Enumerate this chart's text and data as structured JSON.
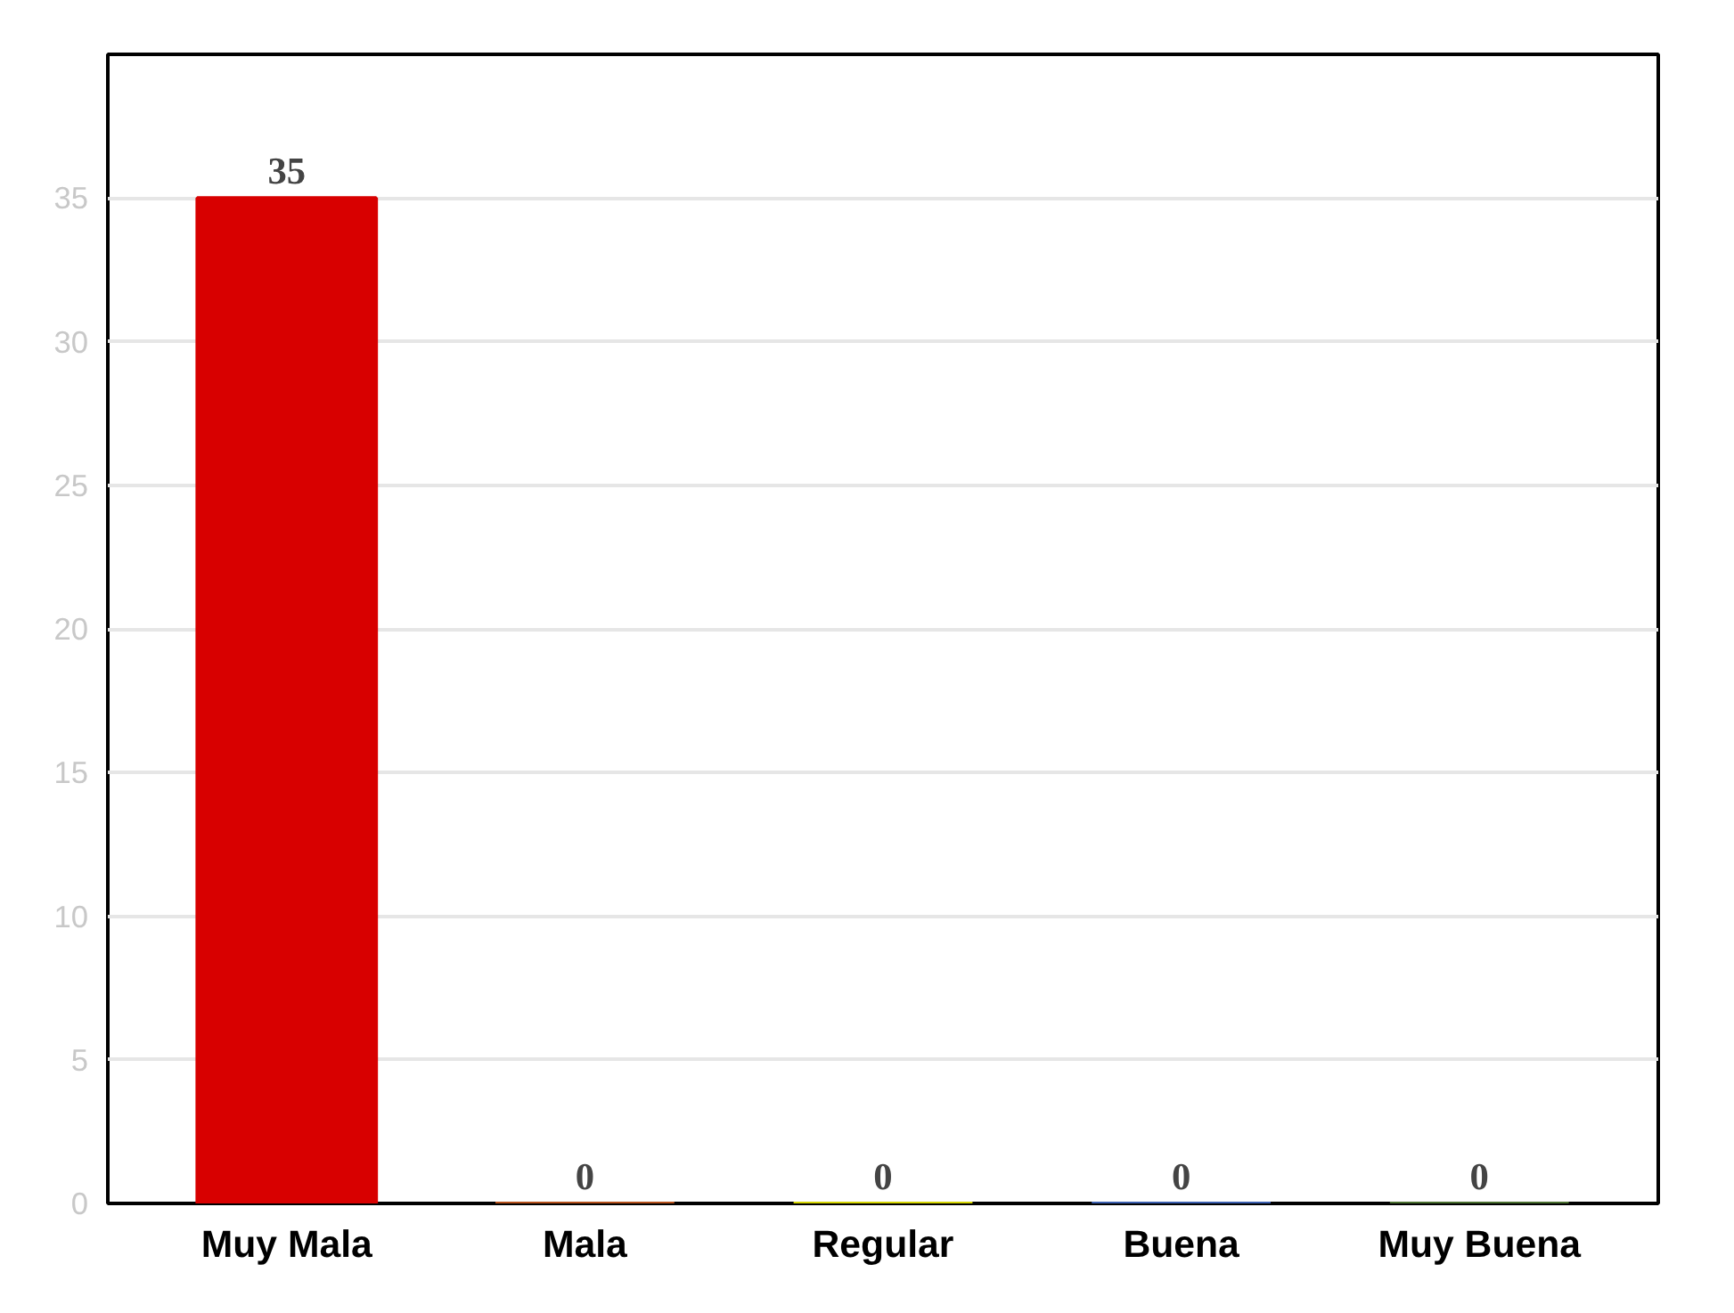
{
  "chart_data": {
    "type": "bar",
    "categories": [
      "Muy Mala",
      "Mala",
      "Regular",
      "Buena",
      "Muy Buena"
    ],
    "values": [
      35,
      0,
      0,
      0,
      0
    ],
    "colors": [
      "#d80000",
      "#b5501a",
      "#d4d400",
      "#3a5fb0",
      "#4a7030"
    ],
    "ylim": [
      0,
      40
    ],
    "yticks": [
      0,
      5,
      10,
      15,
      20,
      25,
      30,
      35
    ],
    "grid": "y",
    "data_labels": true
  }
}
